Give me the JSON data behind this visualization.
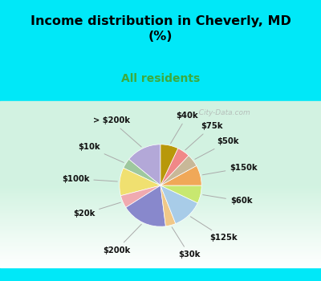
{
  "title": "Income distribution in Cheverly, MD\n(%)",
  "subtitle": "All residents",
  "title_color": "#000000",
  "subtitle_color": "#3daa3d",
  "background_top": "#00e8f8",
  "watermark": "  City-Data.com",
  "labels": [
    "> $200k",
    "$10k",
    "$100k",
    "$20k",
    "$200k",
    "$30k",
    "$125k",
    "$60k",
    "$150k",
    "$50k",
    "$75k",
    "$40k"
  ],
  "values": [
    14,
    4,
    11,
    5,
    18,
    4,
    12,
    7,
    8,
    5,
    5,
    7
  ],
  "colors": [
    "#b3a8d8",
    "#9ec89e",
    "#f0e070",
    "#f0aab0",
    "#8888cc",
    "#f0c888",
    "#a8cce8",
    "#c8e870",
    "#f0a858",
    "#c8b898",
    "#f08888",
    "#b8980a"
  ],
  "label_fontsize": 7.2,
  "startangle": 90,
  "figsize": [
    4.0,
    3.5
  ],
  "dpi": 100
}
